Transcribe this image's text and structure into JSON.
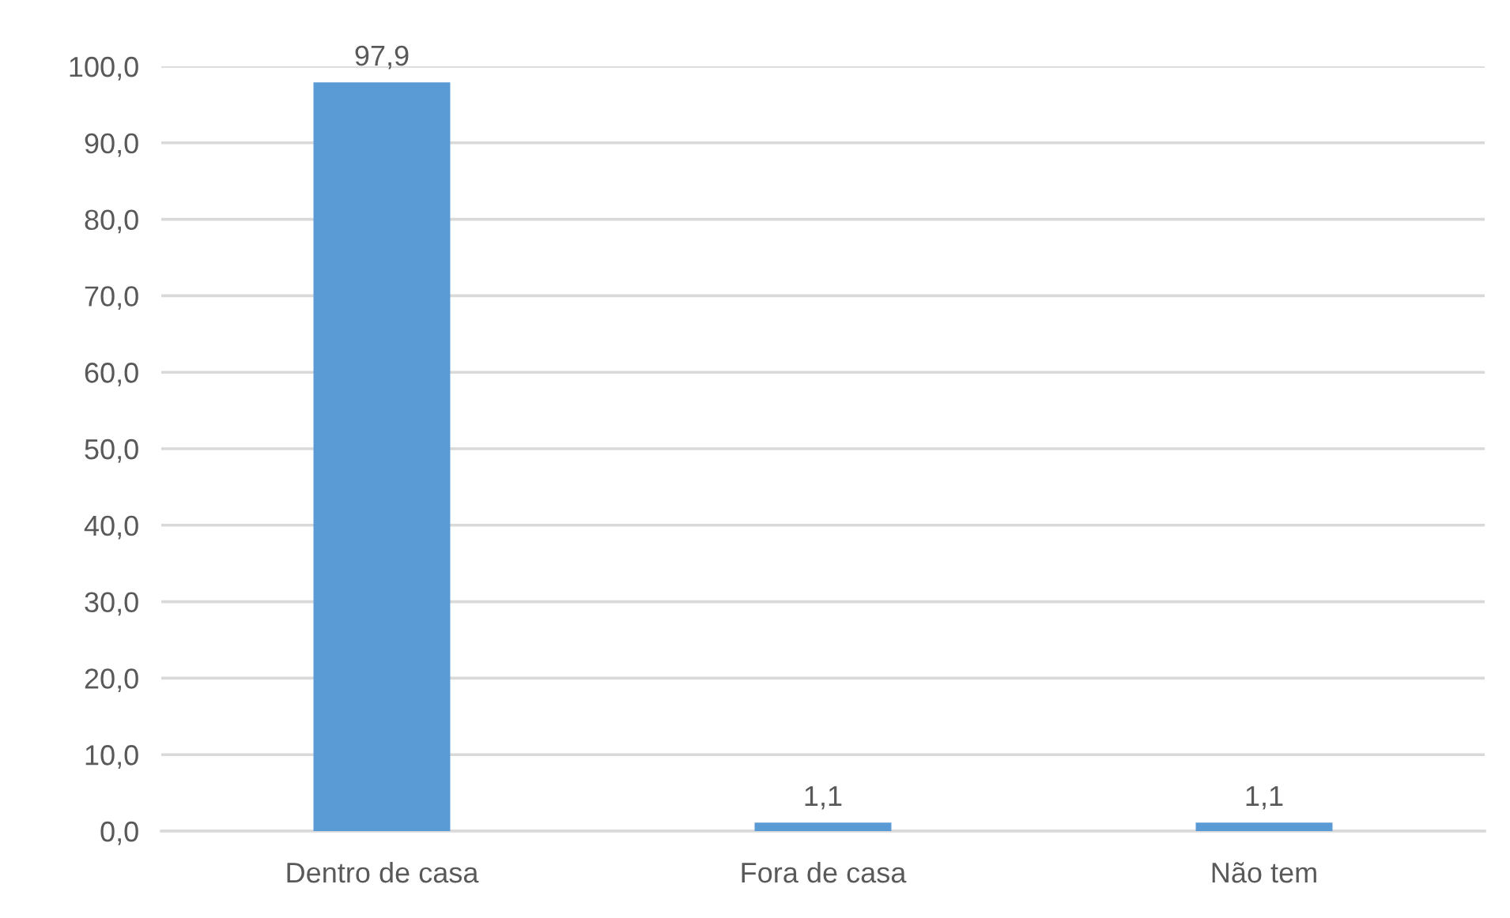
{
  "chart_data": {
    "type": "bar",
    "categories": [
      "Dentro de casa",
      "Fora de casa",
      "Não tem"
    ],
    "values": [
      97.9,
      1.1,
      1.1
    ],
    "color": "#5b9bd5",
    "value_labels": [
      "97,9",
      "1,1",
      "1,1"
    ],
    "ylim": [
      0,
      100
    ],
    "yticks": [
      {
        "value": 0,
        "label": "0,0"
      },
      {
        "value": 10,
        "label": "10,0"
      },
      {
        "value": 20,
        "label": "20,0"
      },
      {
        "value": 30,
        "label": "30,0"
      },
      {
        "value": 40,
        "label": "40,0"
      },
      {
        "value": 50,
        "label": "50,0"
      },
      {
        "value": 60,
        "label": "60,0"
      },
      {
        "value": 70,
        "label": "70,0"
      },
      {
        "value": 80,
        "label": "80,0"
      },
      {
        "value": 90,
        "label": "90,0"
      },
      {
        "value": 100,
        "label": "100,0"
      }
    ],
    "grid": "y"
  }
}
